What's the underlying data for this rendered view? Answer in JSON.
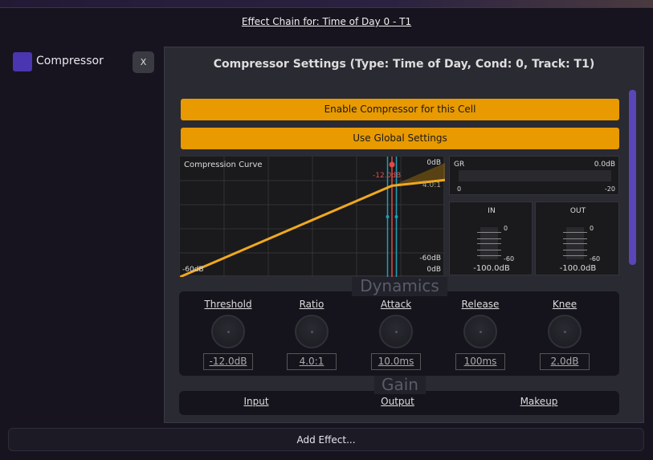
{
  "window": {
    "title": "Effect Chain for: Time of Day 0 - T1"
  },
  "chain": {
    "items": [
      {
        "label": "Compressor",
        "color": "#4a36b0",
        "remove_label": "X"
      }
    ],
    "add_label": "Add Effect..."
  },
  "settings": {
    "title": "Compressor Settings (Type: Time of Day, Cond: 0, Track: T1)",
    "enable_label": "Enable Compressor for this Cell",
    "global_label": "Use Global Settings",
    "accent": "#e89a00",
    "curve": {
      "title": "Compression Curve",
      "threshold_label": "-12.0dB",
      "ratio_label": "4.0:1",
      "top_right": "0dB",
      "bottom_right_y": "-60dB",
      "bottom_right_x": "0dB",
      "bottom_left": "-60dB",
      "threshold_db": -12,
      "ratio": 4,
      "knee_db": 2
    },
    "gr": {
      "label": "GR",
      "value": "0.0dB",
      "min": "0",
      "max": "-20"
    },
    "in_meter": {
      "label": "IN",
      "top": "0",
      "bottom": "-60",
      "value": "-100.0dB"
    },
    "out_meter": {
      "label": "OUT",
      "top": "0",
      "bottom": "-60",
      "value": "-100.0dB"
    },
    "dynamics": {
      "title": "Dynamics",
      "params": [
        {
          "label": "Threshold",
          "value": "-12.0dB"
        },
        {
          "label": "Ratio",
          "value": "4.0:1"
        },
        {
          "label": "Attack",
          "value": "10.0ms"
        },
        {
          "label": "Release",
          "value": "100ms"
        },
        {
          "label": "Knee",
          "value": "2.0dB"
        }
      ]
    },
    "gain": {
      "title": "Gain",
      "params": [
        {
          "label": "Input"
        },
        {
          "label": "Output"
        },
        {
          "label": "Makeup"
        }
      ]
    }
  }
}
